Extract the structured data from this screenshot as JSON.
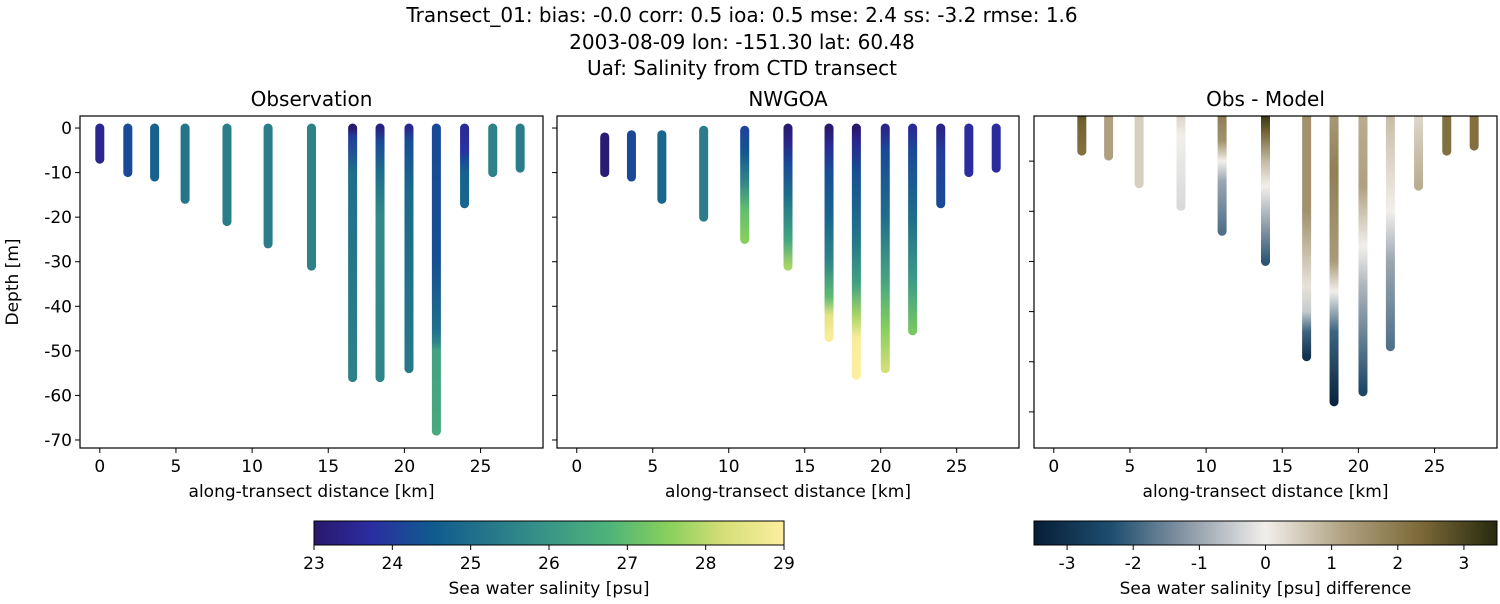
{
  "title_lines": [
    "Transect_01: bias: -0.0  corr: 0.5  ioa: 0.5  mse: 2.4  ss: -3.2  rmse: 1.6",
    "2003-08-09 lon: -151.30 lat: 60.48",
    "Uaf: Salinity from CTD transect"
  ],
  "colormaps": {
    "salinity": {
      "range": [
        23,
        29
      ],
      "colors": [
        "#2a186c",
        "#2b2ea2",
        "#0f5b8f",
        "#26778a",
        "#3a9687",
        "#4db37a",
        "#86cf5c",
        "#d7df78",
        "#fdeea0"
      ]
    },
    "difference": {
      "range": [
        -3.5,
        3.5
      ],
      "colors": [
        "#071d36",
        "#1d4e6f",
        "#8c9aa7",
        "#f2efeb",
        "#b0a282",
        "#7d6a39",
        "#262a0e"
      ]
    }
  },
  "chart_data": [
    {
      "type": "scatter",
      "title": "Observation",
      "xlabel": "along-transect distance [km]",
      "ylabel": "Depth [m]",
      "xlim": [
        -1.3,
        29.1
      ],
      "ylim": [
        -71.8,
        2.7
      ],
      "xticks": [
        0,
        5,
        10,
        15,
        20,
        25
      ],
      "yticks": [
        0,
        -10,
        -20,
        -30,
        -40,
        -50,
        -60,
        -70
      ],
      "show_yticklabels": true,
      "colormap": "salinity",
      "stations": [
        {
          "x": 0,
          "profile": [
            [
              0,
              23.5
            ],
            [
              -7,
              23.5
            ]
          ]
        },
        {
          "x": 1.84,
          "profile": [
            [
              0,
              24.2
            ],
            [
              -10,
              24.2
            ]
          ]
        },
        {
          "x": 3.6,
          "profile": [
            [
              0,
              24.7
            ],
            [
              -11,
              24.7
            ]
          ]
        },
        {
          "x": 5.6,
          "profile": [
            [
              0,
              25.2
            ],
            [
              -16,
              25.2
            ]
          ]
        },
        {
          "x": 8.35,
          "profile": [
            [
              0,
              25.4
            ],
            [
              -21,
              25.4
            ]
          ]
        },
        {
          "x": 11.05,
          "profile": [
            [
              0,
              25.4
            ],
            [
              -26,
              25.4
            ]
          ]
        },
        {
          "x": 13.9,
          "profile": [
            [
              0,
              25.5
            ],
            [
              -31,
              25.5
            ]
          ]
        },
        {
          "x": 16.6,
          "profile": [
            [
              0,
              23
            ],
            [
              -2,
              24
            ],
            [
              -10,
              25
            ],
            [
              -56,
              25.5
            ]
          ]
        },
        {
          "x": 18.4,
          "profile": [
            [
              0,
              23.3
            ],
            [
              -3,
              24.2
            ],
            [
              -10,
              25
            ],
            [
              -20,
              25.7
            ],
            [
              -56,
              25.6
            ]
          ]
        },
        {
          "x": 20.3,
          "profile": [
            [
              0,
              23.5
            ],
            [
              -3,
              24.3
            ],
            [
              -15,
              24.9
            ],
            [
              -54,
              25.3
            ]
          ]
        },
        {
          "x": 22.1,
          "profile": [
            [
              0,
              24.2
            ],
            [
              -30,
              24.3
            ],
            [
              -45,
              25
            ],
            [
              -48,
              25.6
            ],
            [
              -50,
              26.3
            ],
            [
              -68,
              26.5
            ]
          ]
        },
        {
          "x": 23.95,
          "profile": [
            [
              0,
              23.6
            ],
            [
              -5,
              23.8
            ],
            [
              -7,
              24.2
            ],
            [
              -10,
              24.7
            ],
            [
              -17,
              24.8
            ]
          ]
        },
        {
          "x": 25.8,
          "profile": [
            [
              0,
              25.5
            ],
            [
              -10,
              25.5
            ]
          ]
        },
        {
          "x": 27.6,
          "profile": [
            [
              0,
              25.4
            ],
            [
              -9,
              25.4
            ]
          ]
        }
      ]
    },
    {
      "type": "scatter",
      "title": "NWGOA",
      "xlabel": "along-transect distance [km]",
      "xlim": [
        -1.3,
        29.1
      ],
      "ylim": [
        -71.8,
        2.7
      ],
      "xticks": [
        0,
        5,
        10,
        15,
        20,
        25
      ],
      "yticks": [
        0,
        -10,
        -20,
        -30,
        -40,
        -50,
        -60,
        -70
      ],
      "show_yticklabels": false,
      "colormap": "salinity",
      "stations": [
        {
          "x": 1.84,
          "profile": [
            [
              -2,
              23.1
            ],
            [
              -10,
              23.1
            ]
          ]
        },
        {
          "x": 3.6,
          "profile": [
            [
              -1.5,
              24.2
            ],
            [
              -11,
              24.2
            ]
          ]
        },
        {
          "x": 5.6,
          "profile": [
            [
              -1.5,
              24.8
            ],
            [
              -16,
              24.8
            ]
          ]
        },
        {
          "x": 8.35,
          "profile": [
            [
              -0.5,
              25.4
            ],
            [
              -20,
              25.4
            ]
          ]
        },
        {
          "x": 11.05,
          "profile": [
            [
              -0.5,
              24.1
            ],
            [
              -5,
              24.4
            ],
            [
              -12,
              25.6
            ],
            [
              -18,
              27
            ],
            [
              -25,
              27.5
            ]
          ]
        },
        {
          "x": 13.9,
          "profile": [
            [
              0,
              23.1
            ],
            [
              -3,
              23.4
            ],
            [
              -8,
              24.2
            ],
            [
              -15,
              25
            ],
            [
              -25,
              26.4
            ],
            [
              -31,
              27.8
            ]
          ]
        },
        {
          "x": 16.6,
          "profile": [
            [
              0,
              23
            ],
            [
              -4,
              23.6
            ],
            [
              -10,
              24.3
            ],
            [
              -20,
              24.8
            ],
            [
              -30,
              25.6
            ],
            [
              -38,
              27
            ],
            [
              -42,
              28.5
            ],
            [
              -47,
              28.9
            ]
          ]
        },
        {
          "x": 18.4,
          "profile": [
            [
              0,
              23
            ],
            [
              -3,
              23.5
            ],
            [
              -10,
              24.3
            ],
            [
              -25,
              25.2
            ],
            [
              -35,
              26.3
            ],
            [
              -42,
              27.8
            ],
            [
              -47,
              28.9
            ],
            [
              -55.5,
              29
            ]
          ]
        },
        {
          "x": 20.3,
          "profile": [
            [
              0,
              23.4
            ],
            [
              -5,
              24.2
            ],
            [
              -20,
              25
            ],
            [
              -35,
              26.5
            ],
            [
              -45,
              27.5
            ],
            [
              -54,
              28.2
            ]
          ]
        },
        {
          "x": 22.1,
          "profile": [
            [
              0,
              23.6
            ],
            [
              -5,
              24.2
            ],
            [
              -20,
              25
            ],
            [
              -35,
              26.2
            ],
            [
              -45.5,
              27.3
            ]
          ]
        },
        {
          "x": 23.95,
          "profile": [
            [
              0,
              23.4
            ],
            [
              -6,
              24
            ],
            [
              -17,
              24.2
            ]
          ]
        },
        {
          "x": 25.8,
          "profile": [
            [
              0,
              23.7
            ],
            [
              -10,
              23.7
            ]
          ]
        },
        {
          "x": 27.6,
          "profile": [
            [
              0,
              23.7
            ],
            [
              -9,
              23.7
            ]
          ]
        }
      ]
    },
    {
      "type": "scatter",
      "title": "Obs - Model",
      "xlabel": "along-transect distance [km]",
      "xlim": [
        -1.3,
        29.1
      ],
      "ylim": [
        -67.2,
        -1
      ],
      "xticks": [
        0,
        5,
        10,
        15,
        20,
        25
      ],
      "yticks": [
        -10,
        -20,
        -30,
        -40,
        -50,
        -60
      ],
      "show_yticklabels": false,
      "colormap": "difference",
      "stations": [
        {
          "x": 1.84,
          "profile": [
            [
              0,
              3
            ],
            [
              -2,
              2.5
            ],
            [
              -8,
              2.2
            ]
          ]
        },
        {
          "x": 3.6,
          "profile": [
            [
              0,
              1.2
            ],
            [
              -9,
              1.2
            ]
          ]
        },
        {
          "x": 5.6,
          "profile": [
            [
              0,
              0.5
            ],
            [
              -14.5,
              0.5
            ]
          ]
        },
        {
          "x": 8.35,
          "profile": [
            [
              0,
              0.5
            ],
            [
              -5,
              0
            ],
            [
              -19,
              -0.3
            ]
          ]
        },
        {
          "x": 11.05,
          "profile": [
            [
              0,
              2
            ],
            [
              -6,
              1.5
            ],
            [
              -10,
              0
            ],
            [
              -14,
              -1
            ],
            [
              -24,
              -1.8
            ]
          ]
        },
        {
          "x": 13.9,
          "profile": [
            [
              0,
              3.5
            ],
            [
              -4,
              2.5
            ],
            [
              -10,
              0.8
            ],
            [
              -15,
              0
            ],
            [
              -22,
              -1
            ],
            [
              -30,
              -2.2
            ]
          ]
        },
        {
          "x": 16.6,
          "profile": [
            [
              0,
              1.5
            ],
            [
              -20,
              1.5
            ],
            [
              -35,
              0.2
            ],
            [
              -40,
              -0.5
            ],
            [
              -44,
              -2
            ],
            [
              -49,
              -3
            ]
          ]
        },
        {
          "x": 18.4,
          "profile": [
            [
              0,
              1.3
            ],
            [
              -12,
              1.9
            ],
            [
              -30,
              1.3
            ],
            [
              -36,
              0
            ],
            [
              -44,
              -2
            ],
            [
              -58,
              -3.3
            ]
          ]
        },
        {
          "x": 20.3,
          "profile": [
            [
              0,
              1
            ],
            [
              -15,
              1.2
            ],
            [
              -27,
              0
            ],
            [
              -35,
              -0.8
            ],
            [
              -56,
              -2.5
            ]
          ]
        },
        {
          "x": 22.1,
          "profile": [
            [
              0,
              0.8
            ],
            [
              -20,
              0
            ],
            [
              -30,
              -1
            ],
            [
              -47,
              -1.8
            ]
          ]
        },
        {
          "x": 23.95,
          "profile": [
            [
              0,
              0.3
            ],
            [
              -8,
              0.7
            ],
            [
              -15,
              1
            ]
          ]
        },
        {
          "x": 25.8,
          "profile": [
            [
              0,
              2.2
            ],
            [
              -8,
              2.2
            ]
          ]
        },
        {
          "x": 27.6,
          "profile": [
            [
              0,
              2.2
            ],
            [
              -7,
              2.2
            ]
          ]
        }
      ]
    }
  ],
  "colorbars": [
    {
      "colormap": "salinity",
      "ticks": [
        23,
        24,
        25,
        26,
        27,
        28,
        29
      ],
      "label": "Sea water salinity [psu]"
    },
    {
      "colormap": "difference",
      "ticks": [
        -3,
        -2,
        -1,
        0,
        1,
        2,
        3
      ],
      "label": "Sea water salinity [psu] difference"
    }
  ]
}
